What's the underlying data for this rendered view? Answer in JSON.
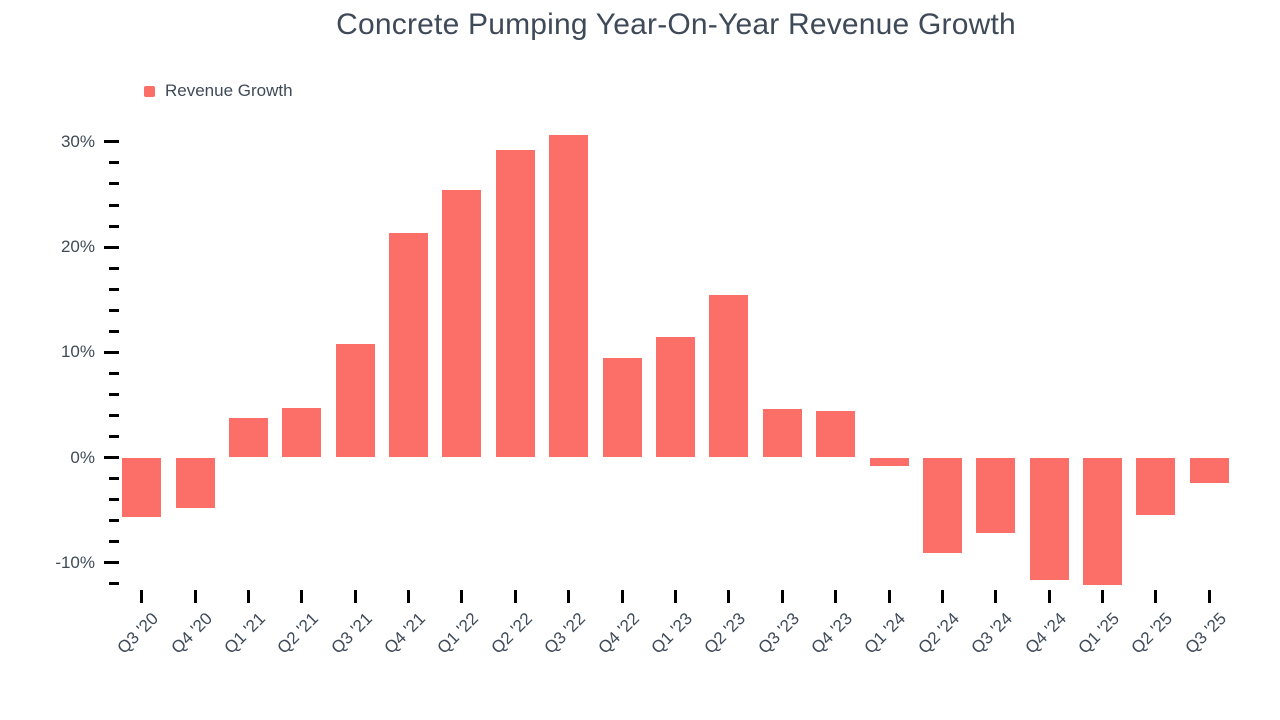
{
  "chart_data": {
    "type": "bar",
    "title": "Concrete Pumping Year-On-Year Revenue Growth",
    "xlabel": "",
    "ylabel": "",
    "legend_position": "top-left",
    "grid": false,
    "categories": [
      "Q3 '20",
      "Q4 '20",
      "Q1 '21",
      "Q2 '21",
      "Q3 '21",
      "Q4 '21",
      "Q1 '22",
      "Q2 '22",
      "Q3 '22",
      "Q4 '22",
      "Q1 '23",
      "Q2 '23",
      "Q3 '23",
      "Q4 '23",
      "Q1 '24",
      "Q2 '24",
      "Q3 '24",
      "Q4 '24",
      "Q1 '25",
      "Q2 '25",
      "Q3 '25"
    ],
    "series": [
      {
        "name": "Revenue Growth",
        "values": [
          -5.7,
          -4.8,
          3.8,
          4.7,
          10.8,
          21.3,
          25.4,
          29.2,
          30.7,
          9.5,
          11.5,
          15.4,
          4.6,
          4.4,
          -0.8,
          -9.1,
          -7.2,
          -11.6,
          -12.1,
          -5.5,
          -2.4
        ]
      }
    ],
    "unit": "%",
    "y_axis": {
      "major_tick_values": [
        -10,
        0,
        10,
        20,
        30
      ],
      "major_tick_labels": [
        "-10%",
        "0%",
        "10%",
        "20%",
        "30%"
      ],
      "minor_tick_step": 2,
      "minor_tick_range": [
        -12,
        30
      ],
      "ylim_shown": [
        -12.4,
        32.1
      ]
    },
    "colors": {
      "bar": "#FC6E68",
      "text": "#3F4A59",
      "tick": "#000000",
      "background": "#FFFFFF"
    }
  }
}
